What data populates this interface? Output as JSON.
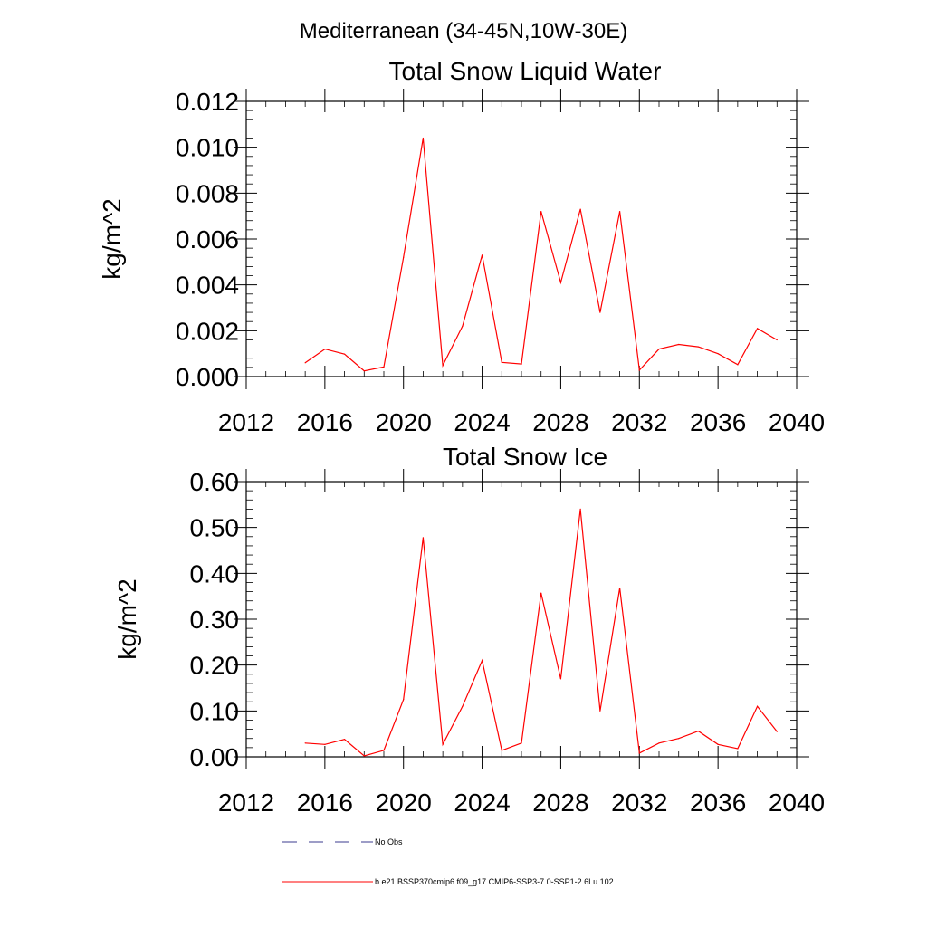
{
  "super_title": "Mediterranean (34-45N,10W-30E)",
  "chart_data": [
    {
      "type": "line",
      "title": "Total Snow Liquid Water",
      "xlabel": "",
      "ylabel": "kg/m^2",
      "xlim": [
        2012,
        2040
      ],
      "ylim": [
        0,
        0.012
      ],
      "xticks": [
        2012,
        2016,
        2020,
        2024,
        2028,
        2032,
        2036,
        2040
      ],
      "yticks": [
        0.0,
        0.002,
        0.004,
        0.006,
        0.008,
        0.01,
        0.012
      ],
      "ytick_labels": [
        "0.000",
        "0.002",
        "0.004",
        "0.006",
        "0.008",
        "0.010",
        "0.012"
      ],
      "grid": false,
      "x": [
        2015,
        2016,
        2017,
        2018,
        2019,
        2020,
        2021,
        2022,
        2023,
        2024,
        2025,
        2026,
        2027,
        2028,
        2029,
        2030,
        2031,
        2032,
        2033,
        2034,
        2035,
        2036,
        2037,
        2038,
        2039
      ],
      "series": [
        {
          "name": "b.e21.BSSP370cmip6.f09_g17.CMIP6-SSP3-7.0-SSP1-2.6Lu.102",
          "color": "#ff0000",
          "values": [
            0.0006,
            0.0012,
            0.00098,
            0.00025,
            0.00042,
            0.0052,
            0.0104,
            0.00048,
            0.0022,
            0.0053,
            0.00062,
            0.00055,
            0.0072,
            0.0041,
            0.0073,
            0.0028,
            0.0072,
            0.00028,
            0.0012,
            0.0014,
            0.0013,
            0.001,
            0.00052,
            0.0021,
            0.0016
          ]
        }
      ]
    },
    {
      "type": "line",
      "title": "Total Snow Ice",
      "xlabel": "",
      "ylabel": "kg/m^2",
      "xlim": [
        2012,
        2040
      ],
      "ylim": [
        0,
        0.6
      ],
      "xticks": [
        2012,
        2016,
        2020,
        2024,
        2028,
        2032,
        2036,
        2040
      ],
      "yticks": [
        0.0,
        0.1,
        0.2,
        0.3,
        0.4,
        0.5,
        0.6
      ],
      "ytick_labels": [
        "0.00",
        "0.10",
        "0.20",
        "0.30",
        "0.40",
        "0.50",
        "0.60"
      ],
      "grid": false,
      "x": [
        2015,
        2016,
        2017,
        2018,
        2019,
        2020,
        2021,
        2022,
        2023,
        2024,
        2025,
        2026,
        2027,
        2028,
        2029,
        2030,
        2031,
        2032,
        2033,
        2034,
        2035,
        2036,
        2037,
        2038,
        2039
      ],
      "series": [
        {
          "name": "b.e21.BSSP370cmip6.f09_g17.CMIP6-SSP3-7.0-SSP1-2.6Lu.102",
          "color": "#ff0000",
          "values": [
            0.03,
            0.027,
            0.038,
            0.002,
            0.014,
            0.125,
            0.478,
            0.027,
            0.11,
            0.21,
            0.014,
            0.03,
            0.357,
            0.17,
            0.54,
            0.1,
            0.368,
            0.008,
            0.03,
            0.04,
            0.056,
            0.027,
            0.018,
            0.11,
            0.055
          ]
        }
      ]
    }
  ],
  "legend": {
    "placement": "bottom-left",
    "items": [
      {
        "label": "No Obs",
        "color": "#3b3b8f",
        "dashed": true
      },
      {
        "label": "b.e21.BSSP370cmip6.f09_g17.CMIP6-SSP3-7.0-SSP1-2.6Lu.102",
        "color": "#ff0000",
        "dashed": false
      }
    ]
  }
}
